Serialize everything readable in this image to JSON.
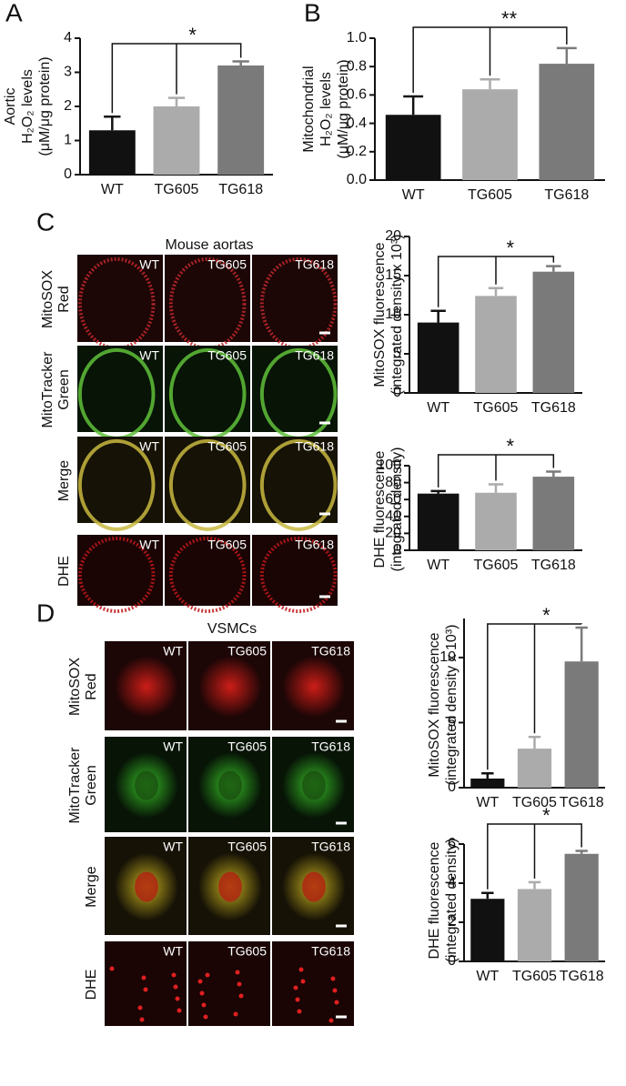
{
  "figure": {
    "panels": [
      "A",
      "B",
      "C",
      "D"
    ],
    "image_titles": [
      "Mouse aortas",
      "VSMCs"
    ],
    "row_labels": [
      [
        "MitoSOX",
        "Red"
      ],
      [
        "MitoTracker",
        "Green"
      ],
      [
        "Merge"
      ],
      [
        "DHE"
      ]
    ],
    "column_labels": [
      "WT",
      "TG605",
      "TG618"
    ]
  },
  "chart_data": [
    {
      "type": "bar",
      "ylabel": [
        "Aortic",
        "H₂O₂ levels",
        "(μM/μg protein)"
      ],
      "categories": [
        "WT",
        "TG605",
        "TG618"
      ],
      "values": [
        1.3,
        2.0,
        3.2
      ],
      "errors": [
        0.4,
        0.25,
        0.12
      ],
      "colors": [
        "#111111",
        "#ababab",
        "#7a7a7a"
      ],
      "ylim": [
        0,
        4
      ],
      "yticks": [
        0,
        1,
        2,
        3,
        4
      ],
      "annotation": "*"
    },
    {
      "type": "bar",
      "ylabel": [
        "Mitochondrial",
        "H₂O₂ levels",
        "(μM/μg protein)"
      ],
      "categories": [
        "WT",
        "TG605",
        "TG618"
      ],
      "values": [
        0.46,
        0.64,
        0.82
      ],
      "errors": [
        0.13,
        0.07,
        0.11
      ],
      "colors": [
        "#111111",
        "#ababab",
        "#7a7a7a"
      ],
      "ylim": [
        0,
        1.0
      ],
      "yticks": [
        {
          "value": 0,
          "label": "0.0"
        },
        0.2,
        0.4,
        0.6,
        0.8,
        {
          "value": 1,
          "label": "1.0"
        }
      ],
      "annotation": "**"
    },
    {
      "type": "bar",
      "ylabel": [
        "MitoSOX fluorescence",
        "(integrated density x 10³)"
      ],
      "categories": [
        "WT",
        "TG605",
        "TG618"
      ],
      "values": [
        9,
        12.4,
        15.5
      ],
      "errors": [
        1.5,
        1,
        0.7
      ],
      "colors": [
        "#111111",
        "#ababab",
        "#7a7a7a"
      ],
      "ylim": [
        0,
        20
      ],
      "yticks": [
        0,
        5,
        10,
        15,
        20
      ],
      "annotation": "*"
    },
    {
      "type": "bar",
      "ylabel": [
        "DHE fluorescence",
        "(integrated density)"
      ],
      "categories": [
        "WT",
        "TG605",
        "TG618"
      ],
      "values": [
        67,
        68,
        87
      ],
      "errors": [
        3,
        10,
        6
      ],
      "colors": [
        "#111111",
        "#ababab",
        "#7a7a7a"
      ],
      "ylim": [
        0,
        100
      ],
      "yticks": [
        0,
        20,
        40,
        60,
        80,
        100
      ],
      "annotation": "*"
    },
    {
      "type": "bar",
      "ylabel": [
        "MitoSOX fluorescence",
        "(integrated density x 10³)"
      ],
      "categories": [
        "WT",
        "TG605",
        "TG618"
      ],
      "values": [
        0.7,
        3,
        9.7
      ],
      "errors": [
        0.4,
        0.9,
        2.6
      ],
      "colors": [
        "#111111",
        "#ababab",
        "#7a7a7a"
      ],
      "ylim": [
        0,
        13
      ],
      "yticks": [
        0,
        5,
        10
      ],
      "annotation": "*"
    },
    {
      "type": "bar",
      "ylabel": [
        "DHE fluorescence",
        "(integrated density)"
      ],
      "categories": [
        "WT",
        "TG605",
        "TG618"
      ],
      "values": [
        3.2,
        3.7,
        5.5
      ],
      "errors": [
        0.3,
        0.35,
        0.15
      ],
      "colors": [
        "#111111",
        "#ababab",
        "#7a7a7a"
      ],
      "ylim": [
        0,
        6
      ],
      "yticks": [
        0,
        2,
        4,
        6
      ],
      "annotation": "*"
    }
  ]
}
